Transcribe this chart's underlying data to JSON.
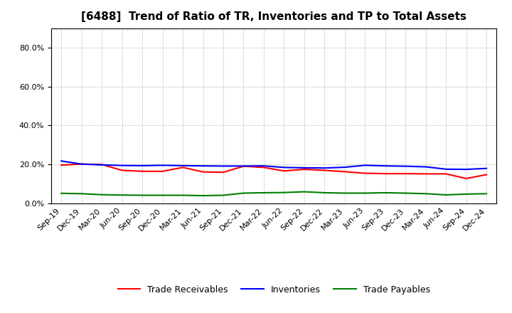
{
  "title": "[6488]  Trend of Ratio of TR, Inventories and TP to Total Assets",
  "x_labels": [
    "Sep-19",
    "Dec-19",
    "Mar-20",
    "Jun-20",
    "Sep-20",
    "Dec-20",
    "Mar-21",
    "Jun-21",
    "Sep-21",
    "Dec-21",
    "Mar-22",
    "Jun-22",
    "Sep-22",
    "Dec-22",
    "Mar-23",
    "Jun-23",
    "Sep-23",
    "Dec-23",
    "Mar-24",
    "Jun-24",
    "Sep-24",
    "Dec-24"
  ],
  "trade_receivables": [
    0.197,
    0.202,
    0.2,
    0.17,
    0.165,
    0.165,
    0.185,
    0.162,
    0.16,
    0.191,
    0.185,
    0.167,
    0.175,
    0.17,
    0.163,
    0.155,
    0.153,
    0.153,
    0.152,
    0.152,
    0.128,
    0.148
  ],
  "inventories": [
    0.218,
    0.202,
    0.198,
    0.195,
    0.194,
    0.196,
    0.194,
    0.193,
    0.192,
    0.192,
    0.193,
    0.185,
    0.183,
    0.182,
    0.186,
    0.196,
    0.193,
    0.191,
    0.188,
    0.176,
    0.175,
    0.18
  ],
  "trade_payables": [
    0.052,
    0.05,
    0.045,
    0.043,
    0.042,
    0.042,
    0.042,
    0.04,
    0.042,
    0.053,
    0.055,
    0.056,
    0.06,
    0.055,
    0.053,
    0.053,
    0.055,
    0.053,
    0.05,
    0.044,
    0.048,
    0.05
  ],
  "colors": {
    "trade_receivables": "#FF0000",
    "inventories": "#0000FF",
    "trade_payables": "#008000"
  },
  "ylim": [
    0.0,
    0.9
  ],
  "yticks": [
    0.0,
    0.2,
    0.4,
    0.6,
    0.8
  ],
  "background_color": "#FFFFFF",
  "legend_labels": [
    "Trade Receivables",
    "Inventories",
    "Trade Payables"
  ],
  "title_fontsize": 11,
  "tick_fontsize": 8,
  "legend_fontsize": 9,
  "linewidth": 1.5
}
